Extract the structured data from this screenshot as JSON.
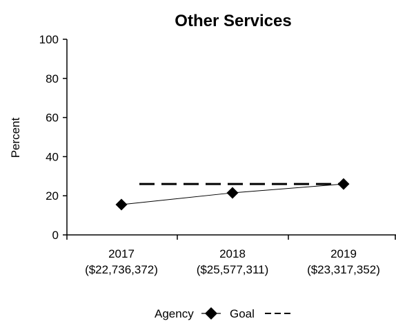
{
  "chart_data": {
    "type": "line",
    "title": "Other Services",
    "ylabel": "Percent",
    "xlabel": "",
    "ylim": [
      0,
      100
    ],
    "yticks": [
      0,
      20,
      40,
      60,
      80,
      100
    ],
    "categories": [
      {
        "year": "2017",
        "amount": "($22,736,372)"
      },
      {
        "year": "2018",
        "amount": "($25,577,311)"
      },
      {
        "year": "2019",
        "amount": "($23,317,352)"
      }
    ],
    "series": [
      {
        "name": "Agency",
        "values": [
          15.5,
          21.5,
          26
        ],
        "style": "solid",
        "marker": "diamond",
        "color": "#000000"
      },
      {
        "name": "Goal",
        "values": [
          26,
          26,
          26
        ],
        "style": "dashed",
        "marker": "none",
        "color": "#000000"
      }
    ],
    "legend_position": "bottom",
    "grid": false
  }
}
